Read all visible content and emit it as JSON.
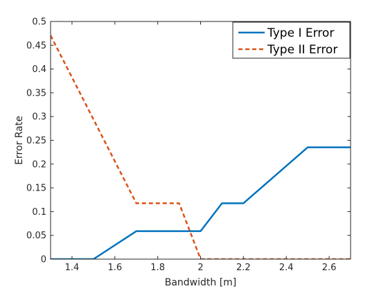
{
  "chart_data": {
    "type": "line",
    "title": "",
    "xlabel": "Bandwidth [m]",
    "ylabel": "Error Rate",
    "xlim": [
      1.3,
      2.7
    ],
    "ylim": [
      0,
      0.5
    ],
    "xticks": [
      1.4,
      1.6,
      1.8,
      2,
      2.2,
      2.4,
      2.6
    ],
    "xtick_labels": [
      "1.4",
      "1.6",
      "1.8",
      "2",
      "2.2",
      "2.4",
      "2.6"
    ],
    "yticks": [
      0,
      0.05,
      0.1,
      0.15,
      0.2,
      0.25,
      0.3,
      0.35,
      0.4,
      0.45,
      0.5
    ],
    "ytick_labels": [
      "0",
      "0.05",
      "0.1",
      "0.15",
      "0.2",
      "0.25",
      "0.3",
      "0.35",
      "0.4",
      "0.45",
      "0.5"
    ],
    "grid": false,
    "legend_position": "top-right",
    "series": [
      {
        "name": "Type I Error",
        "style": "solid",
        "color": "#0072BD",
        "x": [
          1.3,
          1.5,
          1.7,
          1.9,
          2.0,
          2.1,
          2.2,
          2.5,
          2.7
        ],
        "y": [
          0,
          0,
          0.0588,
          0.0588,
          0.0588,
          0.1176,
          0.1176,
          0.2353,
          0.2353
        ]
      },
      {
        "name": "Type II Error",
        "style": "dashed",
        "color": "#D95319",
        "x": [
          1.3,
          1.7,
          1.9,
          2.0,
          2.7
        ],
        "y": [
          0.4706,
          0.1176,
          0.1176,
          0,
          0
        ]
      }
    ]
  }
}
